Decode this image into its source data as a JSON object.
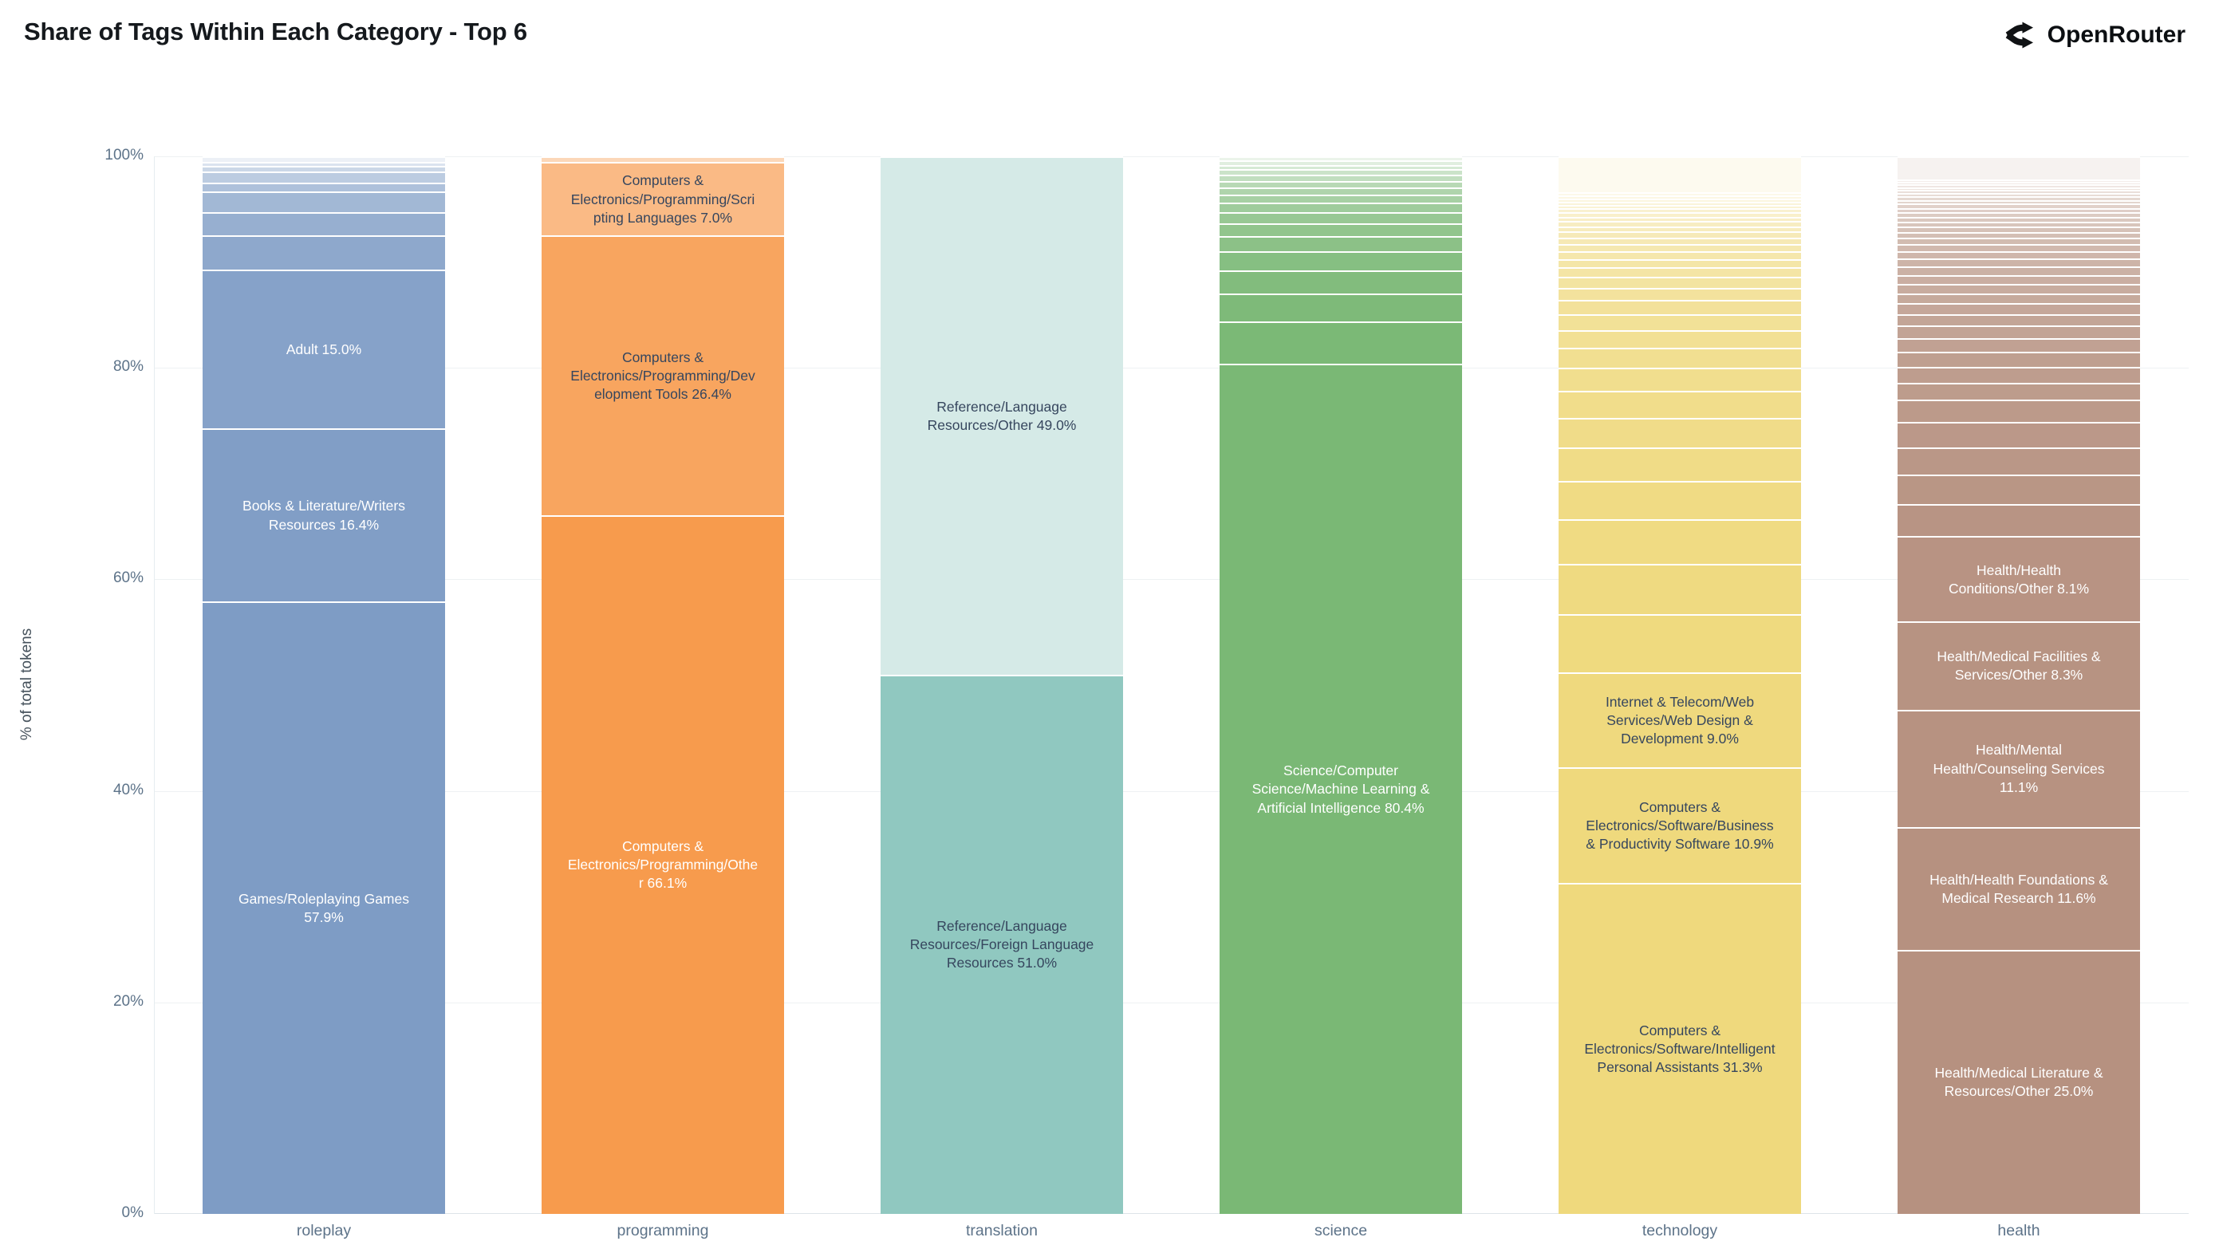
{
  "header": {
    "title": "Share of Tags Within Each Category - Top 6",
    "brand": "OpenRouter"
  },
  "axes": {
    "ylabel": "% of total tokens",
    "y_ticks": [
      {
        "label": "100%",
        "value": 100
      },
      {
        "label": "80%",
        "value": 80
      },
      {
        "label": "60%",
        "value": 60
      },
      {
        "label": "40%",
        "value": 40
      },
      {
        "label": "20%",
        "value": 20
      },
      {
        "label": "0%",
        "value": 0
      }
    ]
  },
  "label_colors": {
    "light": "#ffffff",
    "dark": "#36465e"
  },
  "chart_data": {
    "type": "bar",
    "stacked": true,
    "normalized": "percent",
    "title": "Share of Tags Within Each Category - Top 6",
    "xlabel": "",
    "ylabel": "% of total tokens",
    "ylim": [
      0,
      100
    ],
    "grid": "horizontal-light",
    "legend": "none",
    "categories": [
      "roleplay",
      "programming",
      "translation",
      "science",
      "technology",
      "health"
    ],
    "bars": [
      {
        "category": "roleplay",
        "color": "#7e9cc5",
        "top_fade": 0.85,
        "segments": [
          {
            "name": "Games/Roleplaying Games",
            "value": 57.9,
            "text": "Games/Roleplaying Games 57.9%",
            "text_color": "light"
          },
          {
            "name": "Books & Literature/Writers Resources",
            "value": 16.4,
            "text": "Books & Literature/Writers Resources 16.4%",
            "text_color": "light"
          },
          {
            "name": "Adult",
            "value": 15.0,
            "text": "Adult 15.0%",
            "text_color": "light"
          },
          {
            "value": 3.2
          },
          {
            "value": 2.2
          },
          {
            "value": 2.0
          },
          {
            "value": 0.8
          },
          {
            "value": 1.1
          },
          {
            "value": 0.5
          },
          {
            "value": 0.4
          },
          {
            "value": 0.5
          }
        ]
      },
      {
        "category": "programming",
        "color": "#f79b4d",
        "top_fade": 0.6,
        "segments": [
          {
            "name": "Computers & Electronics/Programming/Other",
            "value": 66.1,
            "text": "Computers & Electronics/Programming/Other 66.1%",
            "text_color": "light"
          },
          {
            "name": "Computers & Electronics/Programming/Development Tools",
            "value": 26.4,
            "text": "Computers & Electronics/Programming/Development Tools 26.4%",
            "text_color": "dark"
          },
          {
            "name": "Computers & Electronics/Programming/Scripting Languages",
            "value": 7.0,
            "text": "Computers & Electronics/Programming/Scripting Languages 7.0%",
            "text_color": "dark"
          },
          {
            "value": 0.5
          }
        ]
      },
      {
        "category": "translation",
        "color": "#90c8c0",
        "top_fade": 0.62,
        "segments": [
          {
            "name": "Reference/Language Resources/Foreign Language Resources",
            "value": 51.0,
            "text": "Reference/Language Resources/Foreign Language Resources 51.0%",
            "text_color": "dark"
          },
          {
            "name": "Reference/Language Resources/Other",
            "value": 49.0,
            "text": "Reference/Language Resources/Other 49.0%",
            "text_color": "dark"
          }
        ]
      },
      {
        "category": "science",
        "color": "#7ab875",
        "top_fade": 0.85,
        "segments": [
          {
            "name": "Science/Computer Science/Machine Learning & Artificial Intelligence",
            "value": 80.4,
            "text": "Science/Computer Science/Machine Learning & Artificial Intelligence 80.4%",
            "text_color": "light"
          },
          {
            "value": 4.0
          },
          {
            "value": 2.6
          },
          {
            "value": 2.2
          },
          {
            "value": 1.8
          },
          {
            "value": 1.5
          },
          {
            "value": 1.2
          },
          {
            "value": 1.0
          },
          {
            "value": 0.9
          },
          {
            "value": 0.8
          },
          {
            "value": 0.7
          },
          {
            "value": 0.6
          },
          {
            "value": 0.6
          },
          {
            "value": 0.5
          },
          {
            "value": 0.4
          },
          {
            "value": 0.4
          },
          {
            "value": 0.4
          }
        ]
      },
      {
        "category": "technology",
        "color": "#efd97d",
        "top_fade": 0.88,
        "segments": [
          {
            "name": "Computers & Electronics/Software/Intelligent Personal Assistants",
            "value": 31.3,
            "text": "Computers & Electronics/Software/Intelligent Personal Assistants 31.3%",
            "text_color": "dark"
          },
          {
            "name": "Computers & Electronics/Software/Business & Productivity Software",
            "value": 10.9,
            "text": "Computers & Electronics/Software/Business & Productivity Software 10.9%",
            "text_color": "dark"
          },
          {
            "name": "Internet & Telecom/Web Services/Web Design & Development",
            "value": 9.0,
            "text": "Internet & Telecom/Web Services/Web Design & Development 9.0%",
            "text_color": "dark"
          },
          {
            "value": 5.5
          },
          {
            "value": 4.8
          },
          {
            "value": 4.2
          },
          {
            "value": 3.6
          },
          {
            "value": 3.2
          },
          {
            "value": 2.8
          },
          {
            "value": 2.5
          },
          {
            "value": 2.2
          },
          {
            "value": 1.9
          },
          {
            "value": 1.7
          },
          {
            "value": 1.5
          },
          {
            "value": 1.3
          },
          {
            "value": 1.2
          },
          {
            "value": 1.0
          },
          {
            "value": 0.9
          },
          {
            "value": 0.8
          },
          {
            "value": 0.7
          },
          {
            "value": 0.7
          },
          {
            "value": 0.6
          },
          {
            "value": 0.6
          },
          {
            "value": 0.5
          },
          {
            "value": 0.5
          },
          {
            "value": 0.4
          },
          {
            "value": 0.4
          },
          {
            "value": 0.4
          },
          {
            "value": 0.3
          },
          {
            "value": 0.3
          },
          {
            "value": 0.3
          },
          {
            "value": 0.3
          },
          {
            "value": 0.3
          },
          {
            "value": 3.4
          }
        ]
      },
      {
        "category": "health",
        "color": "#b69180",
        "top_fade": 0.88,
        "segments": [
          {
            "name": "Health/Medical Literature & Resources/Other",
            "value": 25.0,
            "text": "Health/Medical Literature & Resources/Other 25.0%",
            "text_color": "light"
          },
          {
            "name": "Health/Health Foundations & Medical Research",
            "value": 11.6,
            "text": "Health/Health Foundations & Medical Research 11.6%",
            "text_color": "light"
          },
          {
            "name": "Health/Mental Health/Counseling Services",
            "value": 11.1,
            "text": "Health/Mental Health/Counseling Services 11.1%",
            "text_color": "light"
          },
          {
            "name": "Health/Medical Facilities & Services/Other",
            "value": 8.3,
            "text": "Health/Medical Facilities & Services/Other 8.3%",
            "text_color": "light"
          },
          {
            "name": "Health/Health Conditions/Other",
            "value": 8.1,
            "text": "Health/Health Conditions/Other 8.1%",
            "text_color": "light"
          },
          {
            "value": 3.0
          },
          {
            "value": 2.8
          },
          {
            "value": 2.6
          },
          {
            "value": 2.4
          },
          {
            "value": 2.1
          },
          {
            "value": 1.6
          },
          {
            "value": 1.5
          },
          {
            "value": 1.4
          },
          {
            "value": 1.3
          },
          {
            "value": 1.2
          },
          {
            "value": 1.1
          },
          {
            "value": 1.0
          },
          {
            "value": 0.95
          },
          {
            "value": 0.9
          },
          {
            "value": 0.85
          },
          {
            "value": 0.8
          },
          {
            "value": 0.75
          },
          {
            "value": 0.7
          },
          {
            "value": 0.65
          },
          {
            "value": 0.6
          },
          {
            "value": 0.55
          },
          {
            "value": 0.5
          },
          {
            "value": 0.5
          },
          {
            "value": 0.45
          },
          {
            "value": 0.45
          },
          {
            "value": 0.4
          },
          {
            "value": 0.4
          },
          {
            "value": 0.35
          },
          {
            "value": 0.35
          },
          {
            "value": 0.3
          },
          {
            "value": 0.3
          },
          {
            "value": 0.25
          },
          {
            "value": 0.25
          },
          {
            "value": 0.25
          },
          {
            "value": 0.2
          },
          {
            "value": 2.2
          }
        ]
      }
    ]
  }
}
